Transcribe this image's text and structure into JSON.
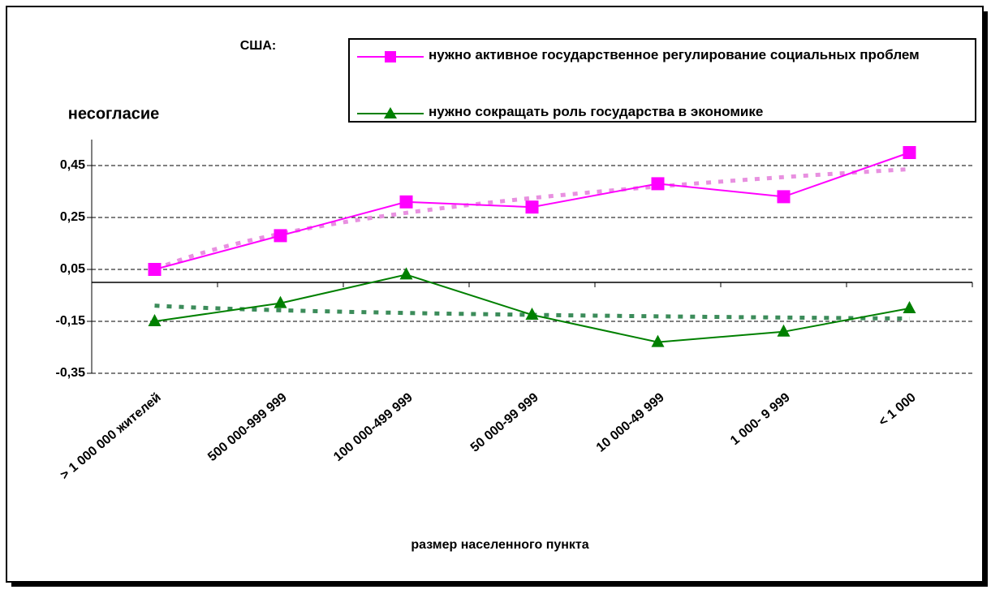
{
  "chart_data": {
    "type": "line",
    "title": "США:",
    "y_label": "несогласие",
    "x_label": "размер населенного пункта",
    "categories": [
      "> 1 000 000 жителей",
      "500 000-999 999",
      "100 000-499 999",
      "50 000-99 999",
      "10 000-49 999",
      "1 000- 9 999",
      "< 1 000"
    ],
    "series": [
      {
        "name": "нужно активное государственное регулирование социальных проблем",
        "color": "#ff00ff",
        "marker": "square",
        "trend_color": "#e890e0",
        "values": [
          0.05,
          0.18,
          0.31,
          0.29,
          0.38,
          0.33,
          0.5
        ]
      },
      {
        "name": "нужно сокращать роль государства в экономике",
        "color": "#008000",
        "marker": "triangle",
        "trend_color": "#3c8c5a",
        "values": [
          -0.15,
          -0.08,
          0.03,
          -0.125,
          -0.23,
          -0.19,
          -0.1
        ]
      }
    ],
    "trendline": "logarithmic",
    "ylim": [
      -0.35,
      0.55
    ],
    "yticks": [
      {
        "value": -0.35,
        "label": "-0,35"
      },
      {
        "value": -0.15,
        "label": "-0,15"
      },
      {
        "value": 0.05,
        "label": "0,05"
      },
      {
        "value": 0.25,
        "label": "0,25"
      },
      {
        "value": 0.45,
        "label": "0,45"
      }
    ],
    "grid": true,
    "legend": "top-right"
  }
}
